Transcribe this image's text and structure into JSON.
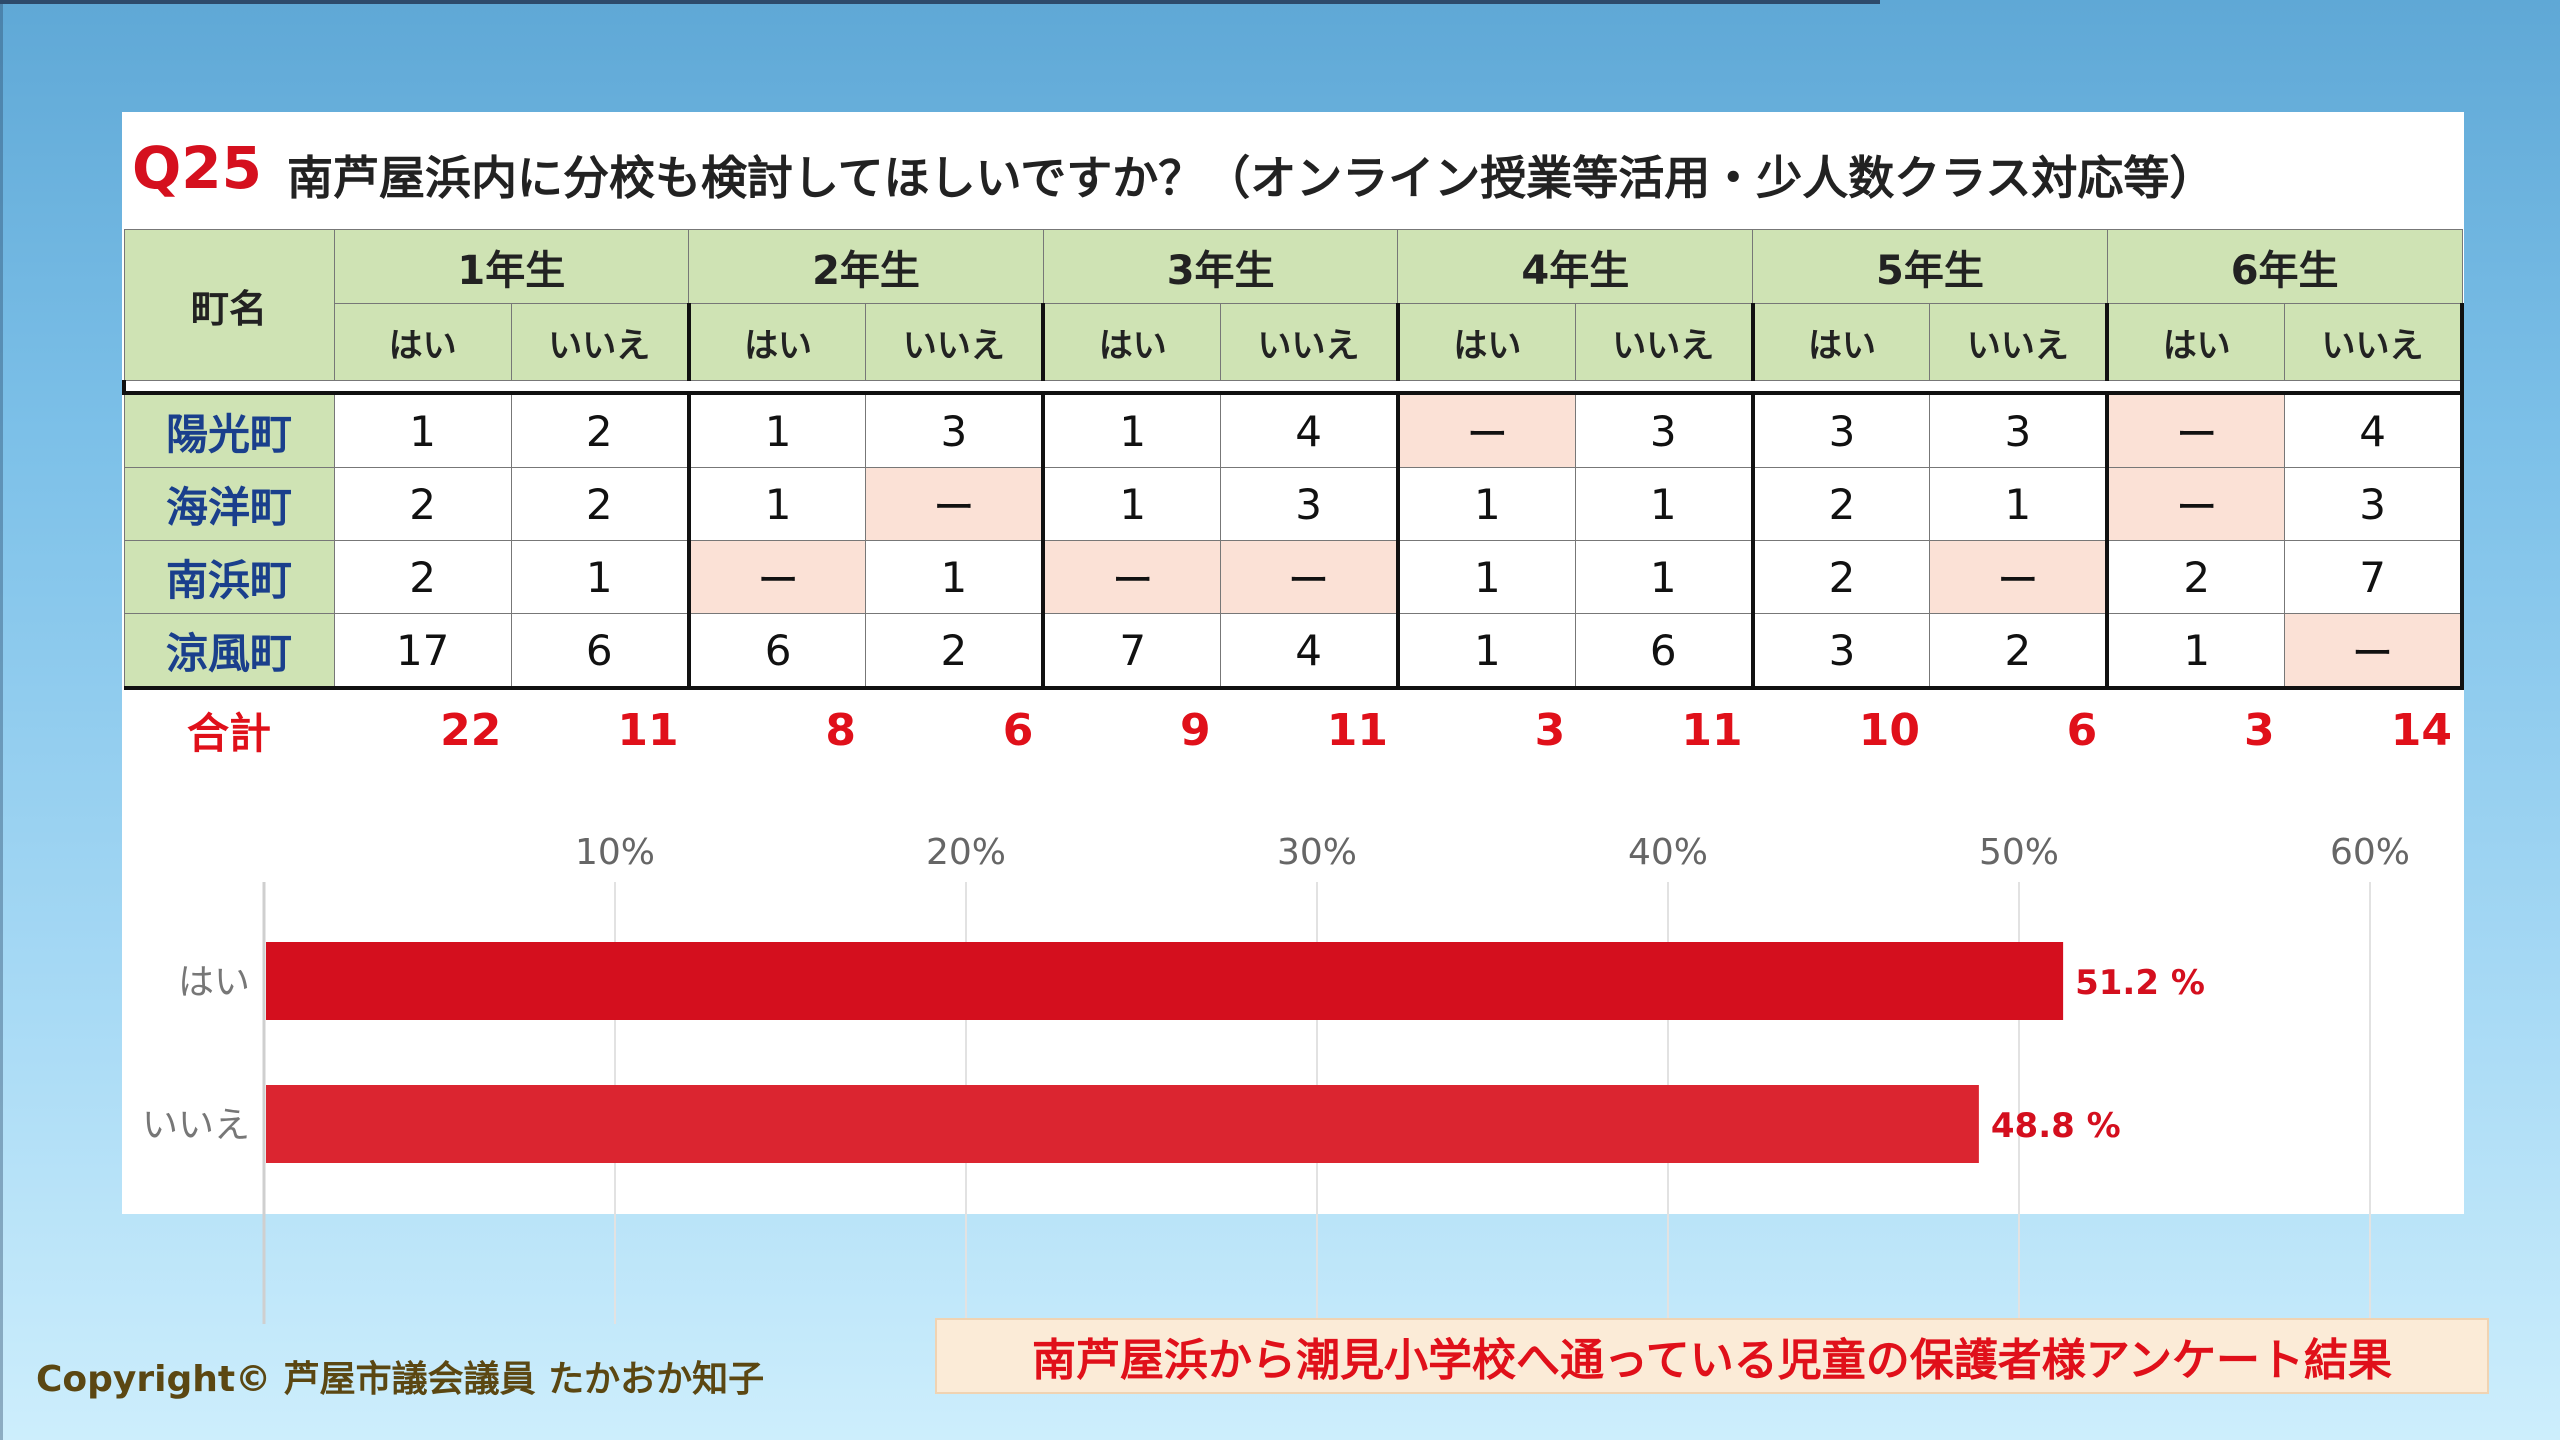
{
  "question": {
    "number": "Q25",
    "text": "南芦屋浜内に分校も検討してほしいですか？（オンライン授業等活用・少人数クラス対応等）"
  },
  "table": {
    "town_header": "町名",
    "grades": [
      "1年生",
      "2年生",
      "3年生",
      "4年生",
      "5年生",
      "6年生"
    ],
    "yes_label": "はい",
    "no_label": "いいえ",
    "rows": [
      {
        "town": "陽光町",
        "values": [
          "1",
          "2",
          "1",
          "3",
          "1",
          "4",
          "ー",
          "3",
          "3",
          "3",
          "ー",
          "4"
        ]
      },
      {
        "town": "海洋町",
        "values": [
          "2",
          "2",
          "1",
          "ー",
          "1",
          "3",
          "1",
          "1",
          "2",
          "1",
          "ー",
          "3"
        ]
      },
      {
        "town": "南浜町",
        "values": [
          "2",
          "1",
          "ー",
          "1",
          "ー",
          "ー",
          "1",
          "1",
          "2",
          "ー",
          "2",
          "7"
        ]
      },
      {
        "town": "涼風町",
        "values": [
          "17",
          "6",
          "6",
          "2",
          "7",
          "4",
          "1",
          "6",
          "3",
          "2",
          "1",
          "ー"
        ]
      }
    ],
    "total_label": "合計",
    "totals": [
      "22",
      "11",
      "8",
      "6",
      "9",
      "11",
      "3",
      "11",
      "10",
      "6",
      "3",
      "14"
    ],
    "highlight_color": "#fbe1d6"
  },
  "chart_data": {
    "type": "bar",
    "orientation": "horizontal",
    "categories": [
      "はい",
      "いいえ"
    ],
    "values": [
      51.2,
      48.8
    ],
    "value_labels": [
      "51.2 %",
      "48.8 %"
    ],
    "x_ticks": [
      "10%",
      "20%",
      "30%",
      "40%",
      "50%",
      "60%"
    ],
    "xlim": [
      0,
      60
    ],
    "grid": true,
    "colors": [
      "#d40f1e",
      "#db2530"
    ],
    "label_color": "#d40f1e"
  },
  "footer": {
    "copyright": "Copyright© 芦屋市議会議員 たかおか知子",
    "caption": "南芦屋浜から潮見小学校へ通っている児童の保護者様アンケート結果"
  }
}
